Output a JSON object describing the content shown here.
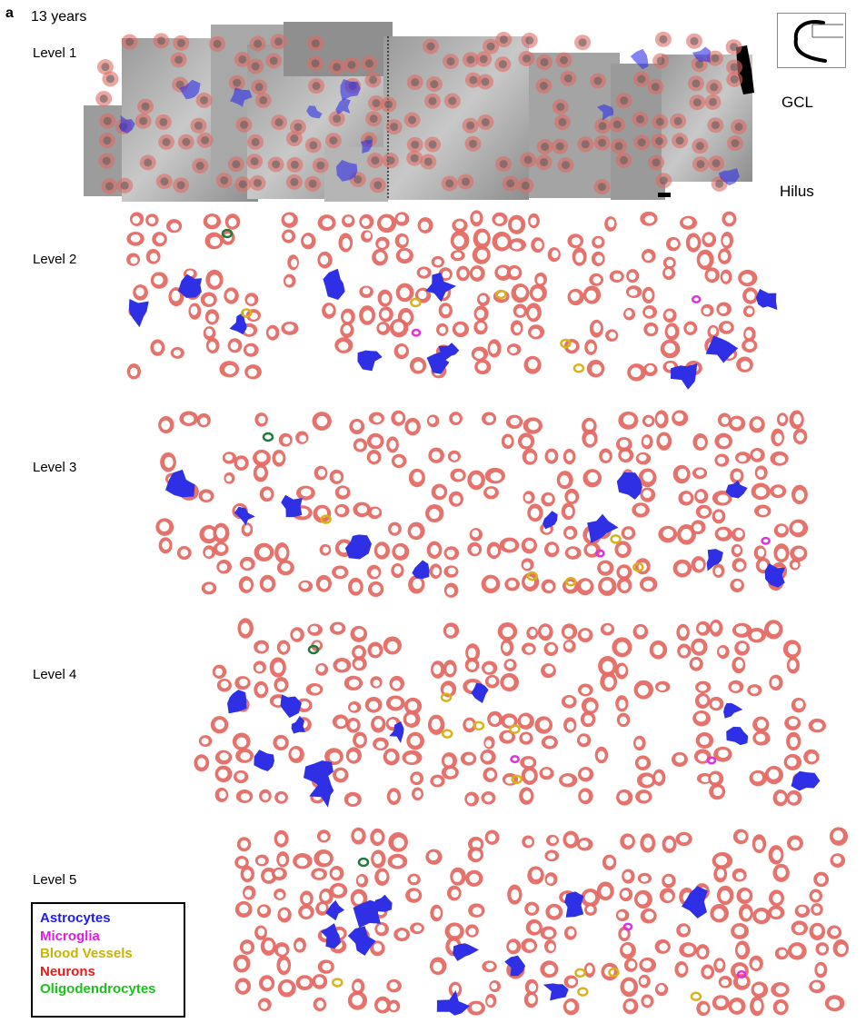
{
  "panel_letter": "a",
  "age": "13 years",
  "side_labels": {
    "top": "GCL",
    "bottom": "Hilus"
  },
  "levels": [
    {
      "label": "Level 1"
    },
    {
      "label": "Level 2"
    },
    {
      "label": "Level 3"
    },
    {
      "label": "Level 4"
    },
    {
      "label": "Level 5"
    }
  ],
  "legend": [
    {
      "label": "Astrocytes",
      "color": "#1d1df0"
    },
    {
      "label": "Microglia",
      "color": "#e21de2"
    },
    {
      "label": "Blood Vessels",
      "color": "#c9b400"
    },
    {
      "label": "Neurons",
      "color": "#e81b1b"
    },
    {
      "label": "Oligodendrocytes",
      "color": "#1ec01e"
    }
  ],
  "colors": {
    "neuron_fill": "#e56a64",
    "astrocyte_fill": "#2f2fe6",
    "microglia": "#e030e0",
    "vessel": "#d9b21a",
    "oligodendrocyte": "#1f7a3a"
  }
}
